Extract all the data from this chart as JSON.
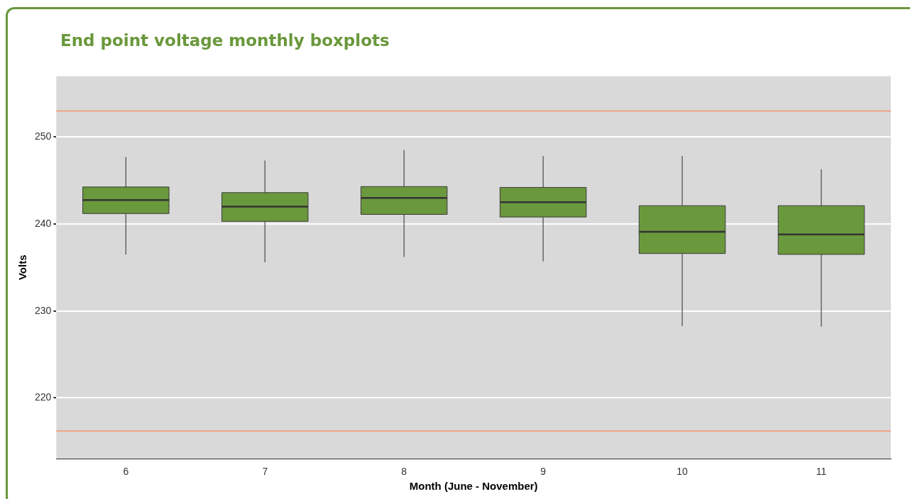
{
  "chart_data": {
    "type": "box",
    "title": "End point voltage monthly boxplots",
    "xlabel": "Month (June - November)",
    "ylabel": "Volts",
    "categories": [
      "6",
      "7",
      "8",
      "9",
      "10",
      "11"
    ],
    "color": "#6a983c",
    "boxes": [
      {
        "low": 236.5,
        "q1": 241.2,
        "median": 242.75,
        "q3": 244.25,
        "high": 247.7
      },
      {
        "low": 235.6,
        "q1": 240.3,
        "median": 242,
        "q3": 243.6,
        "high": 247.3
      },
      {
        "low": 236.2,
        "q1": 241.1,
        "median": 243,
        "q3": 244.3,
        "high": 248.5
      },
      {
        "low": 235.7,
        "q1": 240.8,
        "median": 242.5,
        "q3": 244.2,
        "high": 247.8
      },
      {
        "low": 228.25,
        "q1": 236.6,
        "median": 239.1,
        "q3": 242.1,
        "high": 247.8
      },
      {
        "low": 228.2,
        "q1": 236.5,
        "median": 238.8,
        "q3": 242.1,
        "high": 246.3
      }
    ],
    "ylim": [
      213,
      257
    ],
    "yticks": [
      220,
      230,
      240,
      250
    ],
    "grid": "y",
    "ref_lines": [
      {
        "axis": "y",
        "value": 253,
        "color": "#f4946a"
      },
      {
        "axis": "y",
        "value": 216.2,
        "color": "#f4946a"
      }
    ]
  }
}
